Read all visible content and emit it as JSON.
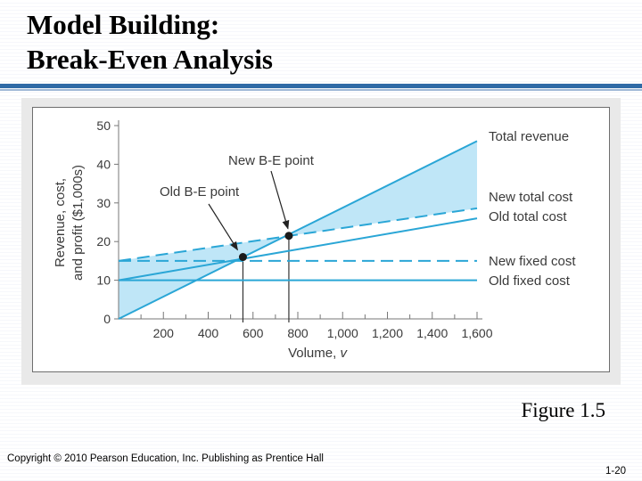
{
  "slide": {
    "title_line1": "Model Building:",
    "title_line2": "Break-Even Analysis",
    "figure_caption": "Figure 1.5",
    "copyright": "Copyright © 2010 Pearson Education, Inc. Publishing as Prentice Hall",
    "page_number": "1-20"
  },
  "colors": {
    "line": "#2aa6d6",
    "shade": "#bfe6f7",
    "title_rule": "#2f6aa6",
    "text": "#3a3a3a"
  },
  "chart_data": {
    "type": "line",
    "xlabel": "Volume, v",
    "ylabel_lines": [
      "Revenue, cost,",
      "and profit ($1,000s)"
    ],
    "xlim": [
      0,
      1600
    ],
    "ylim": [
      0,
      50
    ],
    "x_ticks": [
      200,
      400,
      600,
      800,
      1000,
      1200,
      1400,
      1600
    ],
    "x_tick_labels": [
      "200",
      "400",
      "600",
      "800",
      "1,000",
      "1,200",
      "1,400",
      "1,600"
    ],
    "y_ticks": [
      0,
      10,
      20,
      30,
      40,
      50
    ],
    "y_tick_labels": [
      "0",
      "10",
      "20",
      "30",
      "40",
      "50"
    ],
    "series": [
      {
        "name": "Total revenue",
        "style": "solid",
        "x": [
          0,
          1600
        ],
        "y": [
          0,
          46
        ]
      },
      {
        "name": "New total cost",
        "style": "dashed",
        "x": [
          0,
          1600
        ],
        "y": [
          15,
          28.6
        ]
      },
      {
        "name": "Old total cost",
        "style": "solid",
        "x": [
          0,
          1600
        ],
        "y": [
          10,
          26
        ]
      },
      {
        "name": "New fixed cost",
        "style": "dashed",
        "x": [
          0,
          1600
        ],
        "y": [
          15,
          15
        ]
      },
      {
        "name": "Old fixed cost",
        "style": "solid",
        "x": [
          0,
          1600
        ],
        "y": [
          10,
          10
        ]
      }
    ],
    "points": [
      {
        "name": "Old B-E point",
        "x": 555,
        "y": 16
      },
      {
        "name": "New B-E point",
        "x": 760,
        "y": 21.5
      }
    ],
    "annotations": [
      {
        "text": "New B-E point",
        "target": "New B-E point"
      },
      {
        "text": "Old B-E point",
        "target": "Old B-E point"
      }
    ],
    "shaded_region": "between Total revenue and New total cost"
  }
}
